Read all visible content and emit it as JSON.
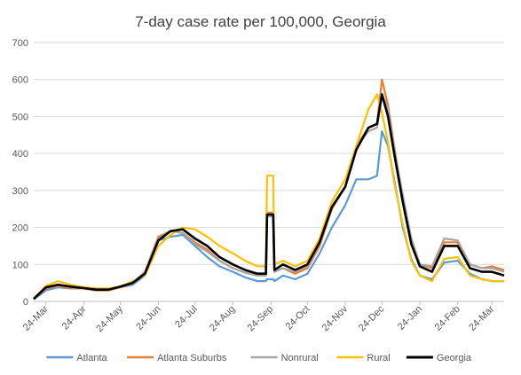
{
  "chart_data": {
    "type": "line",
    "title": "7-day case rate per 100,000, Georgia",
    "xlabel": "",
    "ylabel": "",
    "ylim": [
      0,
      700
    ],
    "yticks": [
      0,
      100,
      200,
      300,
      400,
      500,
      600,
      700
    ],
    "grid": true,
    "legend_position": "bottom",
    "x_start_date": "2020-03-14",
    "x_ticks": [
      "24-Mar",
      "24-Apr",
      "24-May",
      "24-Jun",
      "24-Jul",
      "24-Aug",
      "24-Sep",
      "24-Oct",
      "24-Nov",
      "24-Dec",
      "24-Jan",
      "24-Feb",
      "24-Mar"
    ],
    "x": [
      "2020-03-14",
      "2020-03-24",
      "2020-04-03",
      "2020-04-13",
      "2020-04-24",
      "2020-05-04",
      "2020-05-14",
      "2020-05-24",
      "2020-06-03",
      "2020-06-13",
      "2020-06-24",
      "2020-07-04",
      "2020-07-14",
      "2020-07-24",
      "2020-08-03",
      "2020-08-13",
      "2020-08-24",
      "2020-09-03",
      "2020-09-13",
      "2020-09-20",
      "2020-09-21",
      "2020-09-26",
      "2020-09-27",
      "2020-10-04",
      "2020-10-14",
      "2020-10-24",
      "2020-11-03",
      "2020-11-13",
      "2020-11-24",
      "2020-12-03",
      "2020-12-13",
      "2020-12-20",
      "2020-12-24",
      "2020-12-29",
      "2021-01-03",
      "2021-01-10",
      "2021-01-17",
      "2021-01-24",
      "2021-02-03",
      "2021-02-13",
      "2021-02-24",
      "2021-03-06",
      "2021-03-16",
      "2021-03-24",
      "2021-04-03"
    ],
    "series": [
      {
        "name": "Atlanta",
        "color": "#5b9bd5",
        "values": [
          5,
          30,
          38,
          35,
          35,
          30,
          30,
          38,
          45,
          70,
          165,
          175,
          180,
          150,
          120,
          95,
          80,
          65,
          55,
          55,
          60,
          60,
          55,
          70,
          60,
          75,
          130,
          200,
          260,
          330,
          330,
          340,
          460,
          420,
          330,
          200,
          115,
          70,
          60,
          105,
          110,
          75,
          60,
          55,
          55
        ]
      },
      {
        "name": "Atlanta Suburbs",
        "color": "#ed7d31",
        "values": [
          8,
          35,
          40,
          36,
          35,
          30,
          30,
          38,
          50,
          80,
          175,
          190,
          185,
          160,
          140,
          110,
          90,
          78,
          70,
          70,
          240,
          240,
          80,
          90,
          75,
          90,
          150,
          250,
          310,
          420,
          470,
          480,
          600,
          530,
          420,
          280,
          170,
          100,
          90,
          160,
          160,
          100,
          90,
          95,
          85
        ]
      },
      {
        "name": "Nonrural",
        "color": "#a5a5a5",
        "values": [
          8,
          38,
          42,
          38,
          36,
          32,
          32,
          40,
          48,
          80,
          170,
          190,
          185,
          155,
          135,
          110,
          90,
          78,
          70,
          70,
          230,
          230,
          80,
          90,
          80,
          95,
          160,
          255,
          310,
          420,
          460,
          470,
          560,
          520,
          410,
          290,
          170,
          100,
          95,
          170,
          165,
          100,
          90,
          90,
          80
        ]
      },
      {
        "name": "Rural",
        "color": "#ffc000",
        "values": [
          8,
          42,
          55,
          45,
          38,
          35,
          35,
          40,
          55,
          70,
          150,
          180,
          200,
          195,
          175,
          150,
          130,
          110,
          95,
          95,
          340,
          340,
          100,
          110,
          95,
          110,
          170,
          270,
          330,
          420,
          520,
          560,
          510,
          430,
          320,
          210,
          110,
          70,
          55,
          115,
          120,
          70,
          60,
          55,
          55
        ]
      },
      {
        "name": "Georgia",
        "color": "#000000",
        "values": [
          7,
          38,
          45,
          40,
          36,
          32,
          32,
          40,
          50,
          75,
          165,
          190,
          195,
          170,
          150,
          120,
          100,
          85,
          75,
          75,
          235,
          235,
          85,
          100,
          85,
          100,
          160,
          255,
          310,
          410,
          470,
          480,
          560,
          500,
          400,
          270,
          155,
          95,
          80,
          150,
          150,
          90,
          80,
          80,
          70
        ]
      }
    ]
  }
}
